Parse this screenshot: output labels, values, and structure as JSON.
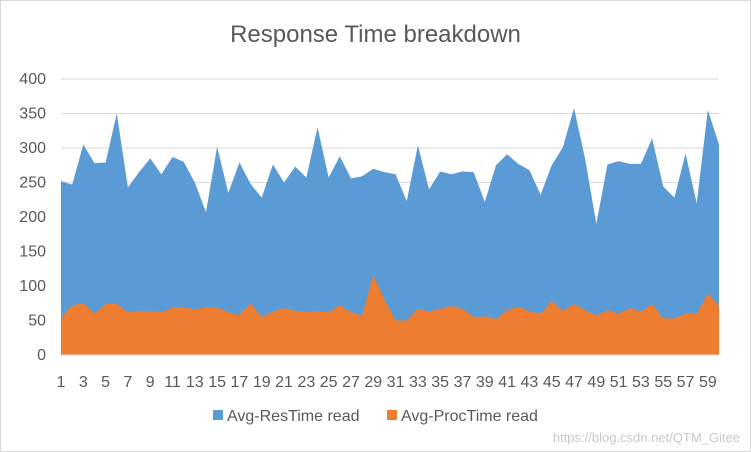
{
  "chart_data": {
    "type": "area",
    "title": "Response Time breakdown",
    "xlabel": "",
    "ylabel": "",
    "ylim": [
      0,
      400
    ],
    "y_ticks": [
      0,
      50,
      100,
      150,
      200,
      250,
      300,
      350,
      400
    ],
    "x_tick_labels": [
      1,
      3,
      5,
      7,
      9,
      11,
      13,
      15,
      17,
      19,
      21,
      23,
      25,
      27,
      29,
      31,
      33,
      35,
      37,
      39,
      41,
      43,
      45,
      47,
      49,
      51,
      53,
      55,
      57,
      59
    ],
    "grid": "horizontal",
    "legend_position": "bottom",
    "x": [
      1,
      2,
      3,
      4,
      5,
      6,
      7,
      8,
      9,
      10,
      11,
      12,
      13,
      14,
      15,
      16,
      17,
      18,
      19,
      20,
      21,
      22,
      23,
      24,
      25,
      26,
      27,
      28,
      29,
      30,
      31,
      32,
      33,
      34,
      35,
      36,
      37,
      38,
      39,
      40,
      41,
      42,
      43,
      44,
      45,
      46,
      47,
      48,
      49,
      50,
      51,
      52,
      53,
      54,
      55,
      56,
      57,
      58,
      59,
      60
    ],
    "series": [
      {
        "name": "Avg-ResTime read",
        "color": "#5b9bd5",
        "values": [
          252,
          247,
          305,
          278,
          279,
          350,
          243,
          265,
          285,
          262,
          287,
          280,
          250,
          207,
          302,
          235,
          279,
          248,
          228,
          276,
          250,
          273,
          257,
          330,
          257,
          288,
          256,
          259,
          270,
          265,
          262,
          223,
          304,
          240,
          266,
          262,
          266,
          265,
          222,
          275,
          291,
          277,
          268,
          232,
          275,
          301,
          358,
          284,
          190,
          276,
          281,
          277,
          277,
          314,
          244,
          228,
          292,
          220,
          355,
          305
        ]
      },
      {
        "name": "Avg-ProcTime read",
        "color": "#ed7d31",
        "values": [
          53,
          72,
          75,
          60,
          74,
          74,
          62,
          64,
          64,
          62,
          69,
          69,
          66,
          70,
          69,
          62,
          58,
          75,
          55,
          63,
          68,
          64,
          62,
          64,
          62,
          72,
          62,
          57,
          116,
          80,
          50,
          50,
          67,
          63,
          67,
          71,
          67,
          55,
          56,
          52,
          65,
          70,
          63,
          60,
          78,
          64,
          74,
          65,
          57,
          65,
          60,
          68,
          63,
          74,
          53,
          53,
          60,
          60,
          89,
          72
        ]
      }
    ]
  },
  "watermark": "https://blog.csdn.net/QTM_Gitee"
}
